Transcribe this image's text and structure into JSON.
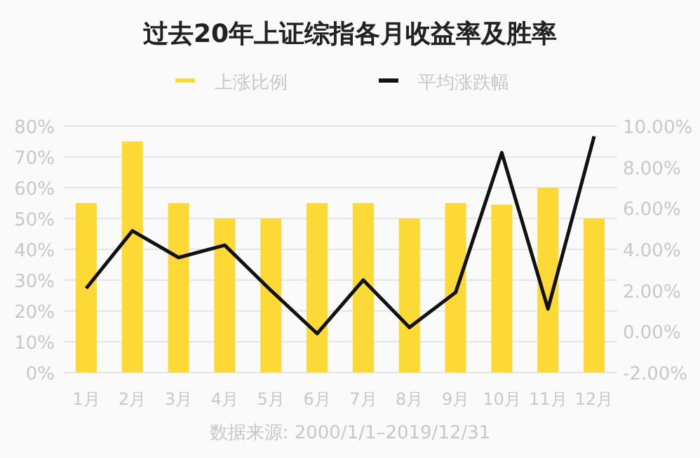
{
  "chart_data": {
    "type": "bar",
    "title": "过去20年上证综指各月收益率及胜率",
    "categories": [
      "1月",
      "2月",
      "3月",
      "4月",
      "5月",
      "6月",
      "7月",
      "8月",
      "9月",
      "10月",
      "11月",
      "12月"
    ],
    "series": [
      {
        "name": "上涨比例",
        "color": "#fcd934",
        "values": [
          55,
          75,
          55,
          50,
          50,
          55,
          55,
          50,
          55,
          54.5,
          60,
          50
        ]
      },
      {
        "name": "平均涨跌幅",
        "color": "#111111",
        "type": "line",
        "axis": "y2",
        "values": [
          2.1,
          4.9,
          3.6,
          4.2,
          2.0,
          -0.1,
          2.5,
          0.2,
          1.9,
          8.7,
          1.1,
          9.5
        ]
      }
    ],
    "ylim": [
      0,
      80
    ],
    "yticks": [
      {
        "value": 0,
        "label": "0%"
      },
      {
        "value": 10,
        "label": "10%"
      },
      {
        "value": 20,
        "label": "20%"
      },
      {
        "value": 30,
        "label": "30%"
      },
      {
        "value": 40,
        "label": "40%"
      },
      {
        "value": 50,
        "label": "50%"
      },
      {
        "value": 60,
        "label": "60%"
      },
      {
        "value": 70,
        "label": "70%"
      },
      {
        "value": 80,
        "label": "80%"
      }
    ],
    "y2lim": [
      -2,
      10
    ],
    "y2ticks": [
      {
        "value": -2,
        "label": "-2.00%"
      },
      {
        "value": 0,
        "label": "0.00%"
      },
      {
        "value": 2,
        "label": "2.00%"
      },
      {
        "value": 4,
        "label": "4.00%"
      },
      {
        "value": 6,
        "label": "6.00%"
      },
      {
        "value": 8,
        "label": "8.00%"
      },
      {
        "value": 10,
        "label": "10.00%"
      }
    ],
    "grid": "y",
    "legend": "top",
    "annotations": [
      "数据来源: 2000/1/1–2019/12/31"
    ]
  }
}
